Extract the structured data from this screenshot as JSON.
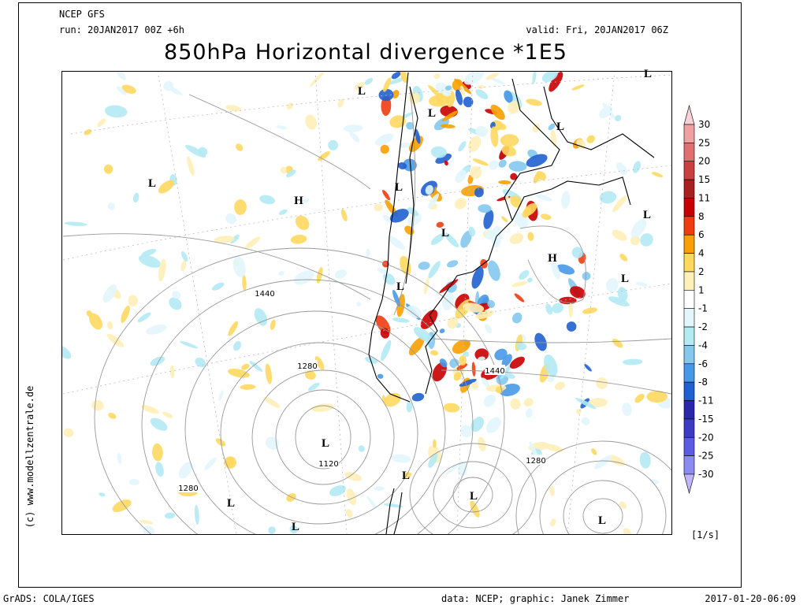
{
  "header": {
    "source": "NCEP GFS",
    "run": "run: 20JAN2017 00Z +6h",
    "valid": "valid: Fri, 20JAN2017 06Z",
    "title": "850hPa Horizontal divergence *1E5"
  },
  "map": {
    "pressure_labels": [
      "L",
      "L",
      "L",
      "L",
      "L",
      "H",
      "L",
      "L",
      "L",
      "H",
      "L",
      "L",
      "L",
      "L",
      "L",
      "L",
      "L",
      "L"
    ],
    "contour_labels": [
      "1440",
      "1280",
      "1440",
      "1120",
      "1280",
      "1280"
    ]
  },
  "legend": {
    "levels": [
      30,
      25,
      20,
      15,
      11,
      8,
      6,
      4,
      2,
      1,
      -1,
      -2,
      -4,
      -6,
      -8,
      -11,
      -15,
      -20,
      -25,
      -30
    ],
    "colors": [
      "#f8d0d8",
      "#f0a0a0",
      "#e07070",
      "#c84040",
      "#a82020",
      "#c80000",
      "#f03c10",
      "#f8a000",
      "#ffd860",
      "#fff0b8",
      "#ffffff",
      "#e2f6fc",
      "#b4eaf4",
      "#84c8f0",
      "#4898e8",
      "#2060d0",
      "#2828a8",
      "#3c3cc0",
      "#5c5ce0",
      "#8c8cf0",
      "#c0b4fc"
    ],
    "unit": "[1/s]"
  },
  "credit": "(c) www.modellzentrale.de",
  "footer": {
    "software": "GrADS: COLA/IGES",
    "data": "data: NCEP; graphic: Janek Zimmer",
    "timestamp": "2017-01-20-06:09"
  }
}
